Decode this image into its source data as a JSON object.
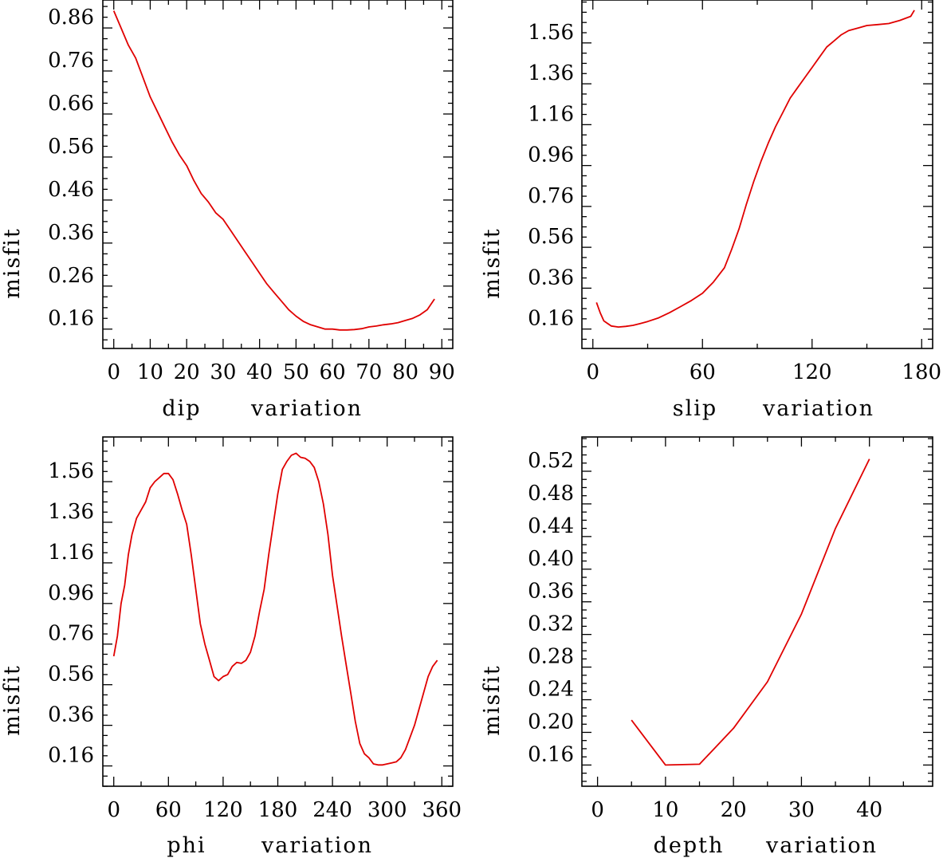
{
  "chart_data": [
    {
      "type": "line",
      "id": "dip",
      "xlabel_words": [
        "dip",
        "variation"
      ],
      "ylabel": "misfit",
      "xlim": [
        -3,
        93
      ],
      "ylim": [
        0.115,
        0.925
      ],
      "xticks": [
        0,
        10,
        20,
        30,
        40,
        50,
        60,
        70,
        80,
        90
      ],
      "xtick_labels": [
        "0",
        "10",
        "20",
        "30",
        "40",
        "50",
        "60",
        "70",
        "80",
        "90"
      ],
      "yticks": [
        0.16,
        0.26,
        0.36,
        0.46,
        0.56,
        0.66,
        0.76,
        0.86
      ],
      "ytick_labels": [
        "0.16",
        "0.26",
        "0.36",
        "0.46",
        "0.56",
        "0.66",
        "0.76",
        "0.86"
      ],
      "series": [
        {
          "name": "misfit",
          "color": "#e00000",
          "x": [
            0,
            2,
            4,
            6,
            8,
            10,
            12,
            14,
            16,
            18,
            20,
            22,
            24,
            26,
            28,
            30,
            32,
            34,
            36,
            38,
            40,
            42,
            44,
            46,
            48,
            50,
            52,
            54,
            56,
            58,
            60,
            62,
            64,
            66,
            68,
            70,
            72,
            74,
            76,
            78,
            80,
            82,
            84,
            86,
            88
          ],
          "y": [
            0.9,
            0.86,
            0.82,
            0.79,
            0.745,
            0.7,
            0.665,
            0.63,
            0.595,
            0.565,
            0.54,
            0.505,
            0.475,
            0.455,
            0.43,
            0.415,
            0.39,
            0.365,
            0.34,
            0.315,
            0.29,
            0.265,
            0.245,
            0.225,
            0.205,
            0.19,
            0.178,
            0.17,
            0.165,
            0.16,
            0.16,
            0.158,
            0.158,
            0.159,
            0.161,
            0.165,
            0.167,
            0.17,
            0.172,
            0.175,
            0.18,
            0.185,
            0.193,
            0.205,
            0.23
          ]
        }
      ]
    },
    {
      "type": "line",
      "id": "slip",
      "xlabel_words": [
        "slip",
        "variation"
      ],
      "ylabel": "misfit",
      "xlim": [
        -6,
        186
      ],
      "ylim": [
        0.065,
        1.77
      ],
      "xticks": [
        0,
        60,
        120,
        180
      ],
      "xtick_labels": [
        "0",
        "60",
        "120",
        "180"
      ],
      "yticks": [
        0.16,
        0.36,
        0.56,
        0.76,
        0.96,
        1.16,
        1.36,
        1.56
      ],
      "ytick_labels": [
        "0.16",
        "0.36",
        "0.56",
        "0.76",
        "0.96",
        "1.16",
        "1.36",
        "1.56"
      ],
      "series": [
        {
          "name": "misfit",
          "color": "#e00000",
          "x": [
            2,
            4,
            6,
            10,
            14,
            18,
            22,
            26,
            30,
            36,
            42,
            48,
            54,
            60,
            66,
            72,
            76,
            80,
            84,
            88,
            92,
            96,
            100,
            104,
            108,
            112,
            116,
            120,
            124,
            128,
            132,
            136,
            140,
            146,
            150,
            156,
            162,
            168,
            174,
            176
          ],
          "y": [
            0.29,
            0.24,
            0.2,
            0.175,
            0.17,
            0.173,
            0.178,
            0.187,
            0.197,
            0.215,
            0.24,
            0.27,
            0.3,
            0.335,
            0.39,
            0.46,
            0.55,
            0.65,
            0.77,
            0.88,
            0.98,
            1.07,
            1.15,
            1.22,
            1.29,
            1.34,
            1.39,
            1.44,
            1.49,
            1.54,
            1.57,
            1.6,
            1.62,
            1.635,
            1.645,
            1.65,
            1.655,
            1.67,
            1.69,
            1.72
          ]
        }
      ]
    },
    {
      "type": "line",
      "id": "phi",
      "xlabel_words": [
        "phi",
        "variation"
      ],
      "ylabel": "misfit",
      "xlim": [
        -12,
        372
      ],
      "ylim": [
        0.06,
        1.78
      ],
      "xticks": [
        0,
        60,
        120,
        180,
        240,
        300,
        360
      ],
      "xtick_labels": [
        "0",
        "60",
        "120",
        "180",
        "240",
        "300",
        "360"
      ],
      "yticks": [
        0.16,
        0.36,
        0.56,
        0.76,
        0.96,
        1.16,
        1.36,
        1.56
      ],
      "ytick_labels": [
        "0.16",
        "0.36",
        "0.56",
        "0.76",
        "0.96",
        "1.16",
        "1.36",
        "1.56"
      ],
      "series": [
        {
          "name": "misfit",
          "color": "#e00000",
          "x": [
            0,
            4,
            8,
            12,
            16,
            20,
            25,
            30,
            35,
            40,
            45,
            50,
            55,
            60,
            65,
            70,
            75,
            80,
            85,
            90,
            95,
            100,
            105,
            110,
            115,
            120,
            125,
            130,
            135,
            140,
            145,
            150,
            155,
            160,
            165,
            170,
            175,
            180,
            185,
            190,
            195,
            200,
            205,
            210,
            215,
            220,
            225,
            230,
            235,
            240,
            245,
            250,
            255,
            260,
            265,
            270,
            275,
            280,
            285,
            290,
            295,
            300,
            305,
            310,
            315,
            320,
            325,
            330,
            335,
            340,
            345,
            350,
            355
          ],
          "y": [
            0.7,
            0.8,
            0.96,
            1.05,
            1.2,
            1.3,
            1.38,
            1.42,
            1.46,
            1.53,
            1.56,
            1.58,
            1.6,
            1.6,
            1.57,
            1.5,
            1.42,
            1.35,
            1.2,
            1.03,
            0.86,
            0.76,
            0.68,
            0.6,
            0.58,
            0.6,
            0.61,
            0.65,
            0.67,
            0.665,
            0.68,
            0.72,
            0.8,
            0.92,
            1.03,
            1.2,
            1.35,
            1.5,
            1.62,
            1.66,
            1.69,
            1.7,
            1.68,
            1.675,
            1.66,
            1.63,
            1.56,
            1.45,
            1.3,
            1.1,
            0.95,
            0.8,
            0.66,
            0.52,
            0.38,
            0.27,
            0.22,
            0.2,
            0.17,
            0.165,
            0.165,
            0.17,
            0.175,
            0.18,
            0.2,
            0.24,
            0.3,
            0.36,
            0.44,
            0.52,
            0.6,
            0.65,
            0.68
          ]
        }
      ]
    },
    {
      "type": "line",
      "id": "depth",
      "xlabel_words": [
        "depth",
        "variation"
      ],
      "ylabel": "misfit",
      "xlim": [
        -2.3,
        49.3
      ],
      "ylim": [
        0.134,
        0.562
      ],
      "xticks": [
        0,
        10,
        20,
        30,
        40
      ],
      "xtick_labels": [
        "0",
        "10",
        "20",
        "30",
        "40"
      ],
      "yticks": [
        0.16,
        0.2,
        0.24,
        0.28,
        0.32,
        0.36,
        0.4,
        0.44,
        0.48,
        0.52
      ],
      "ytick_labels": [
        "0.16",
        "0.20",
        "0.24",
        "0.28",
        "0.32",
        "0.36",
        "0.40",
        "0.44",
        "0.48",
        "0.52"
      ],
      "series": [
        {
          "name": "misfit",
          "color": "#e00000",
          "x": [
            5,
            10,
            15,
            20,
            25,
            30,
            35,
            40
          ],
          "y": [
            0.215,
            0.16,
            0.161,
            0.205,
            0.262,
            0.345,
            0.45,
            0.535
          ]
        }
      ]
    }
  ]
}
